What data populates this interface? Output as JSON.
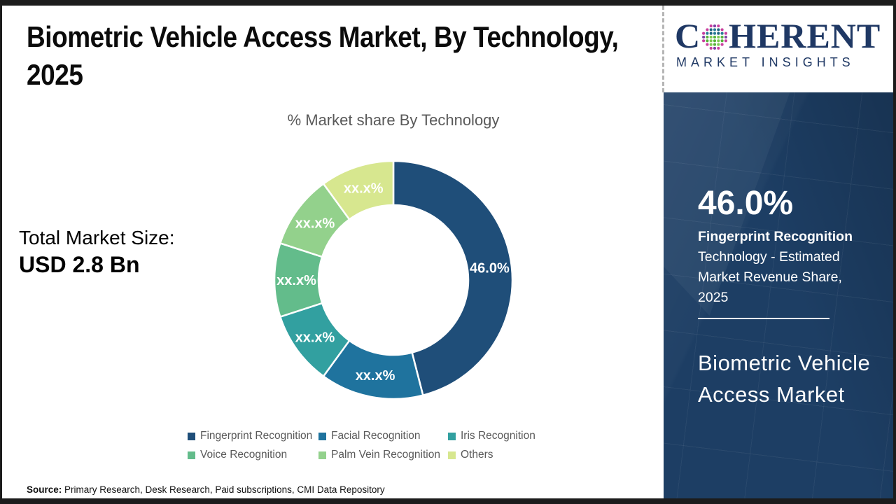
{
  "header": {
    "title_line1": "Biometric Vehicle Access Market, By Technology,",
    "title_line2": "2025"
  },
  "logo": {
    "prefix": "C",
    "suffix": "HERENT",
    "tagline": "MARKET INSIGHTS",
    "brand_navy": "#1f3864",
    "dot_palette": {
      "green": "#55b43a",
      "green2": "#7cc94f",
      "teal": "#2a7d97",
      "teal2": "#1f6580",
      "magenta": "#c93f9e",
      "purple": "#7e3fa4"
    }
  },
  "market_size": {
    "label": "Total Market Size:",
    "value": "USD 2.8 Bn"
  },
  "chart_data": {
    "type": "pie",
    "subtype": "donut",
    "title": "% Market share By Technology",
    "direction": "clockwise",
    "start_angle_deg": 0,
    "inner_radius_ratio": 0.63,
    "legend_position": "bottom",
    "slices": [
      {
        "label": "Fingerprint Recognition",
        "value": 46.0,
        "display": "46.0%",
        "color": "#1f4e79"
      },
      {
        "label": "Facial Recognition",
        "value": 14.0,
        "display": "xx.x%",
        "color": "#1f739e"
      },
      {
        "label": "Iris Recognition",
        "value": 10.0,
        "display": "xx.x%",
        "color": "#32a0a0"
      },
      {
        "label": "Voice Recognition",
        "value": 10.0,
        "display": "xx.x%",
        "color": "#63bc8b"
      },
      {
        "label": "Palm Vein Recognition",
        "value": 10.0,
        "display": "xx.x%",
        "color": "#93d18c"
      },
      {
        "label": "Others",
        "value": 10.0,
        "display": "xx.x%",
        "color": "#d7e78f"
      }
    ]
  },
  "sidebar": {
    "background": "#1d3e64",
    "stat_value": "46.0%",
    "stat_title": "Fingerprint Recognition",
    "stat_description": "Technology - Estimated Market Revenue Share, 2025",
    "product_name": "Biometric Vehicle Access Market"
  },
  "footer": {
    "source_label": "Source:",
    "source_text": " Primary Research, Desk Research, Paid subscriptions, CMI Data Repository"
  }
}
